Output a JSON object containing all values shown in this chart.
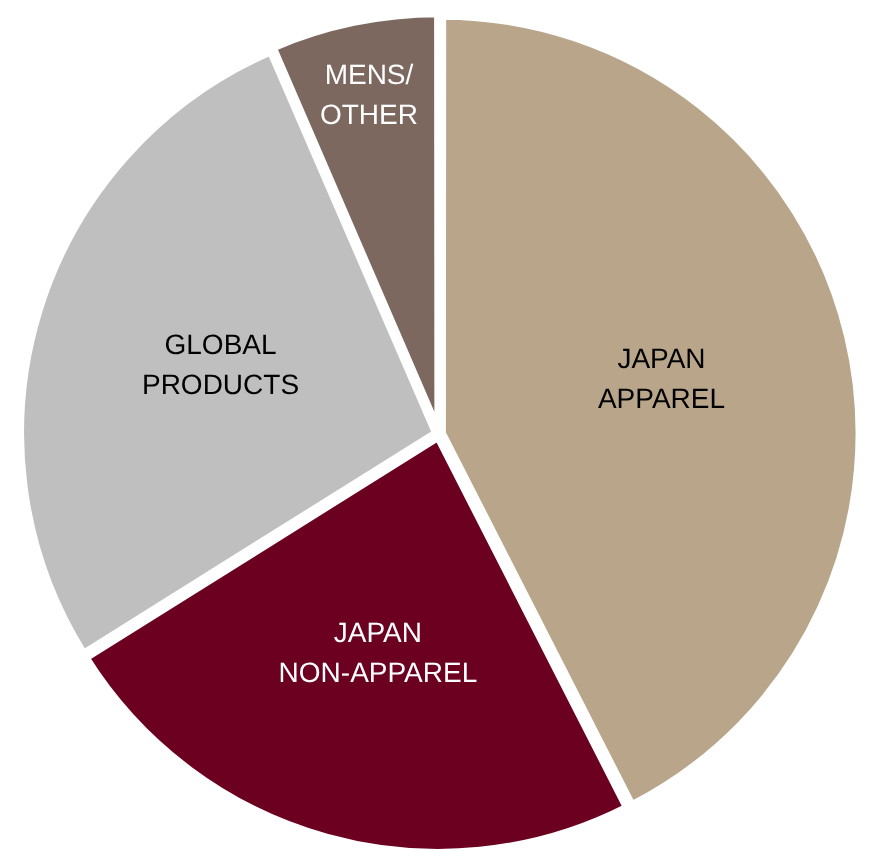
{
  "chart_data": {
    "type": "pie",
    "categories": [
      "JAPAN\nAPPAREL",
      "JAPAN\nNON-APPAREL",
      "GLOBAL\nPRODUCTS",
      "MENS/\nOTHER"
    ],
    "values": [
      42.5,
      23.6,
      27.4,
      6.5
    ],
    "colors": [
      "#b9a68a",
      "#6b0020",
      "#bfbfbf",
      "#7d6860"
    ],
    "legend": false
  }
}
